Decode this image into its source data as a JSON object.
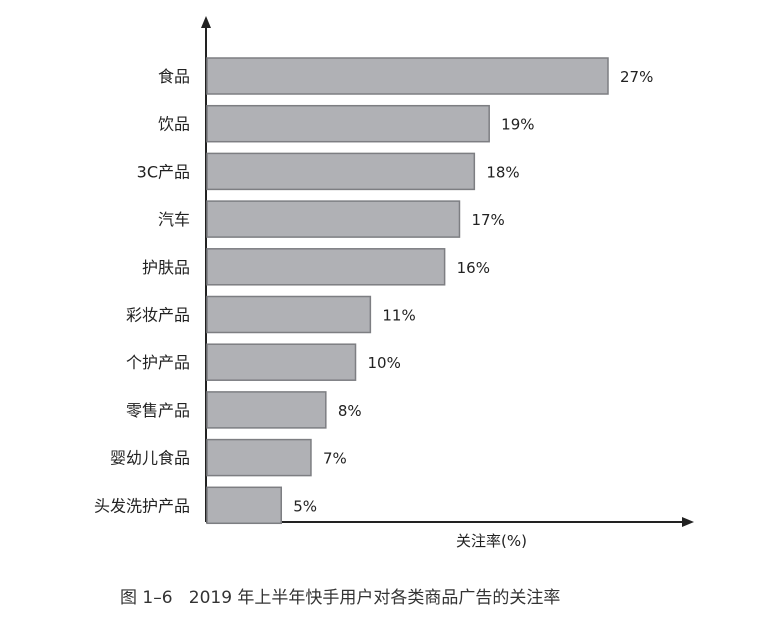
{
  "chart_data": {
    "type": "bar",
    "orientation": "horizontal",
    "categories": [
      "食品",
      "饮品",
      "3C产品",
      "汽车",
      "护肤品",
      "彩妆产品",
      "个护产品",
      "零售产品",
      "婴幼儿食品",
      "头发洗护产品"
    ],
    "values": [
      27,
      19,
      18,
      17,
      16,
      11,
      10,
      8,
      7,
      5
    ],
    "value_labels": [
      "27%",
      "19%",
      "18%",
      "17%",
      "16%",
      "11%",
      "10%",
      "8%",
      "7%",
      "5%"
    ],
    "xlabel": "关注率(%)",
    "ylabel": "",
    "xlim": [
      0,
      30
    ],
    "grid": false,
    "caption": "图 1–6   2019 年上半年快手用户对各类商品广告的关注率",
    "bar_color": "#b0b1b5",
    "bar_edge_color": "#7d7e82"
  }
}
